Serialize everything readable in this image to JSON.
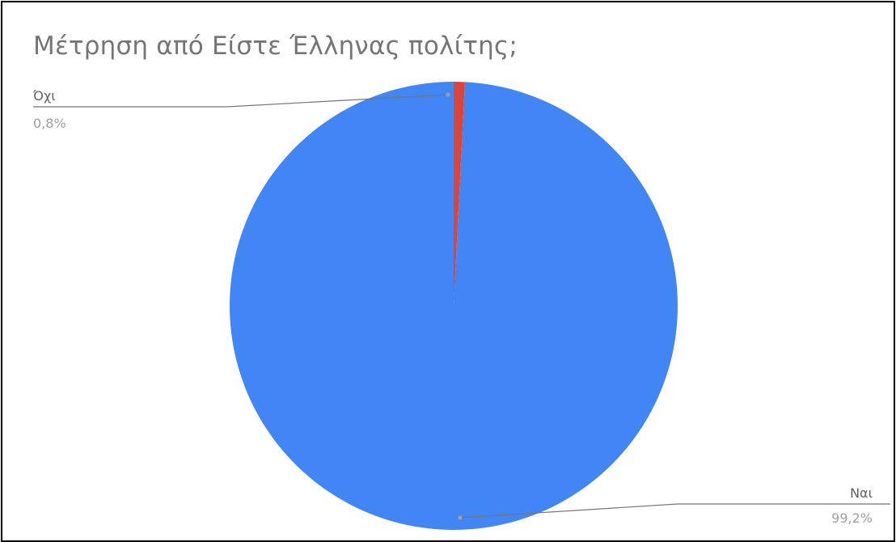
{
  "chart_data": {
    "type": "pie",
    "title": "Μέτρηση από Είστε Έλληνας πολίτης;",
    "slices": [
      {
        "label": "Ναι",
        "value": 99.2,
        "percent_label": "99,2%",
        "color": "#4285F4"
      },
      {
        "label": "Όχι",
        "value": 0.8,
        "percent_label": "0,8%",
        "color": "#DB4437"
      }
    ],
    "start_angle": "12 o'clock",
    "direction": "counterclockwise",
    "legend": "none"
  }
}
